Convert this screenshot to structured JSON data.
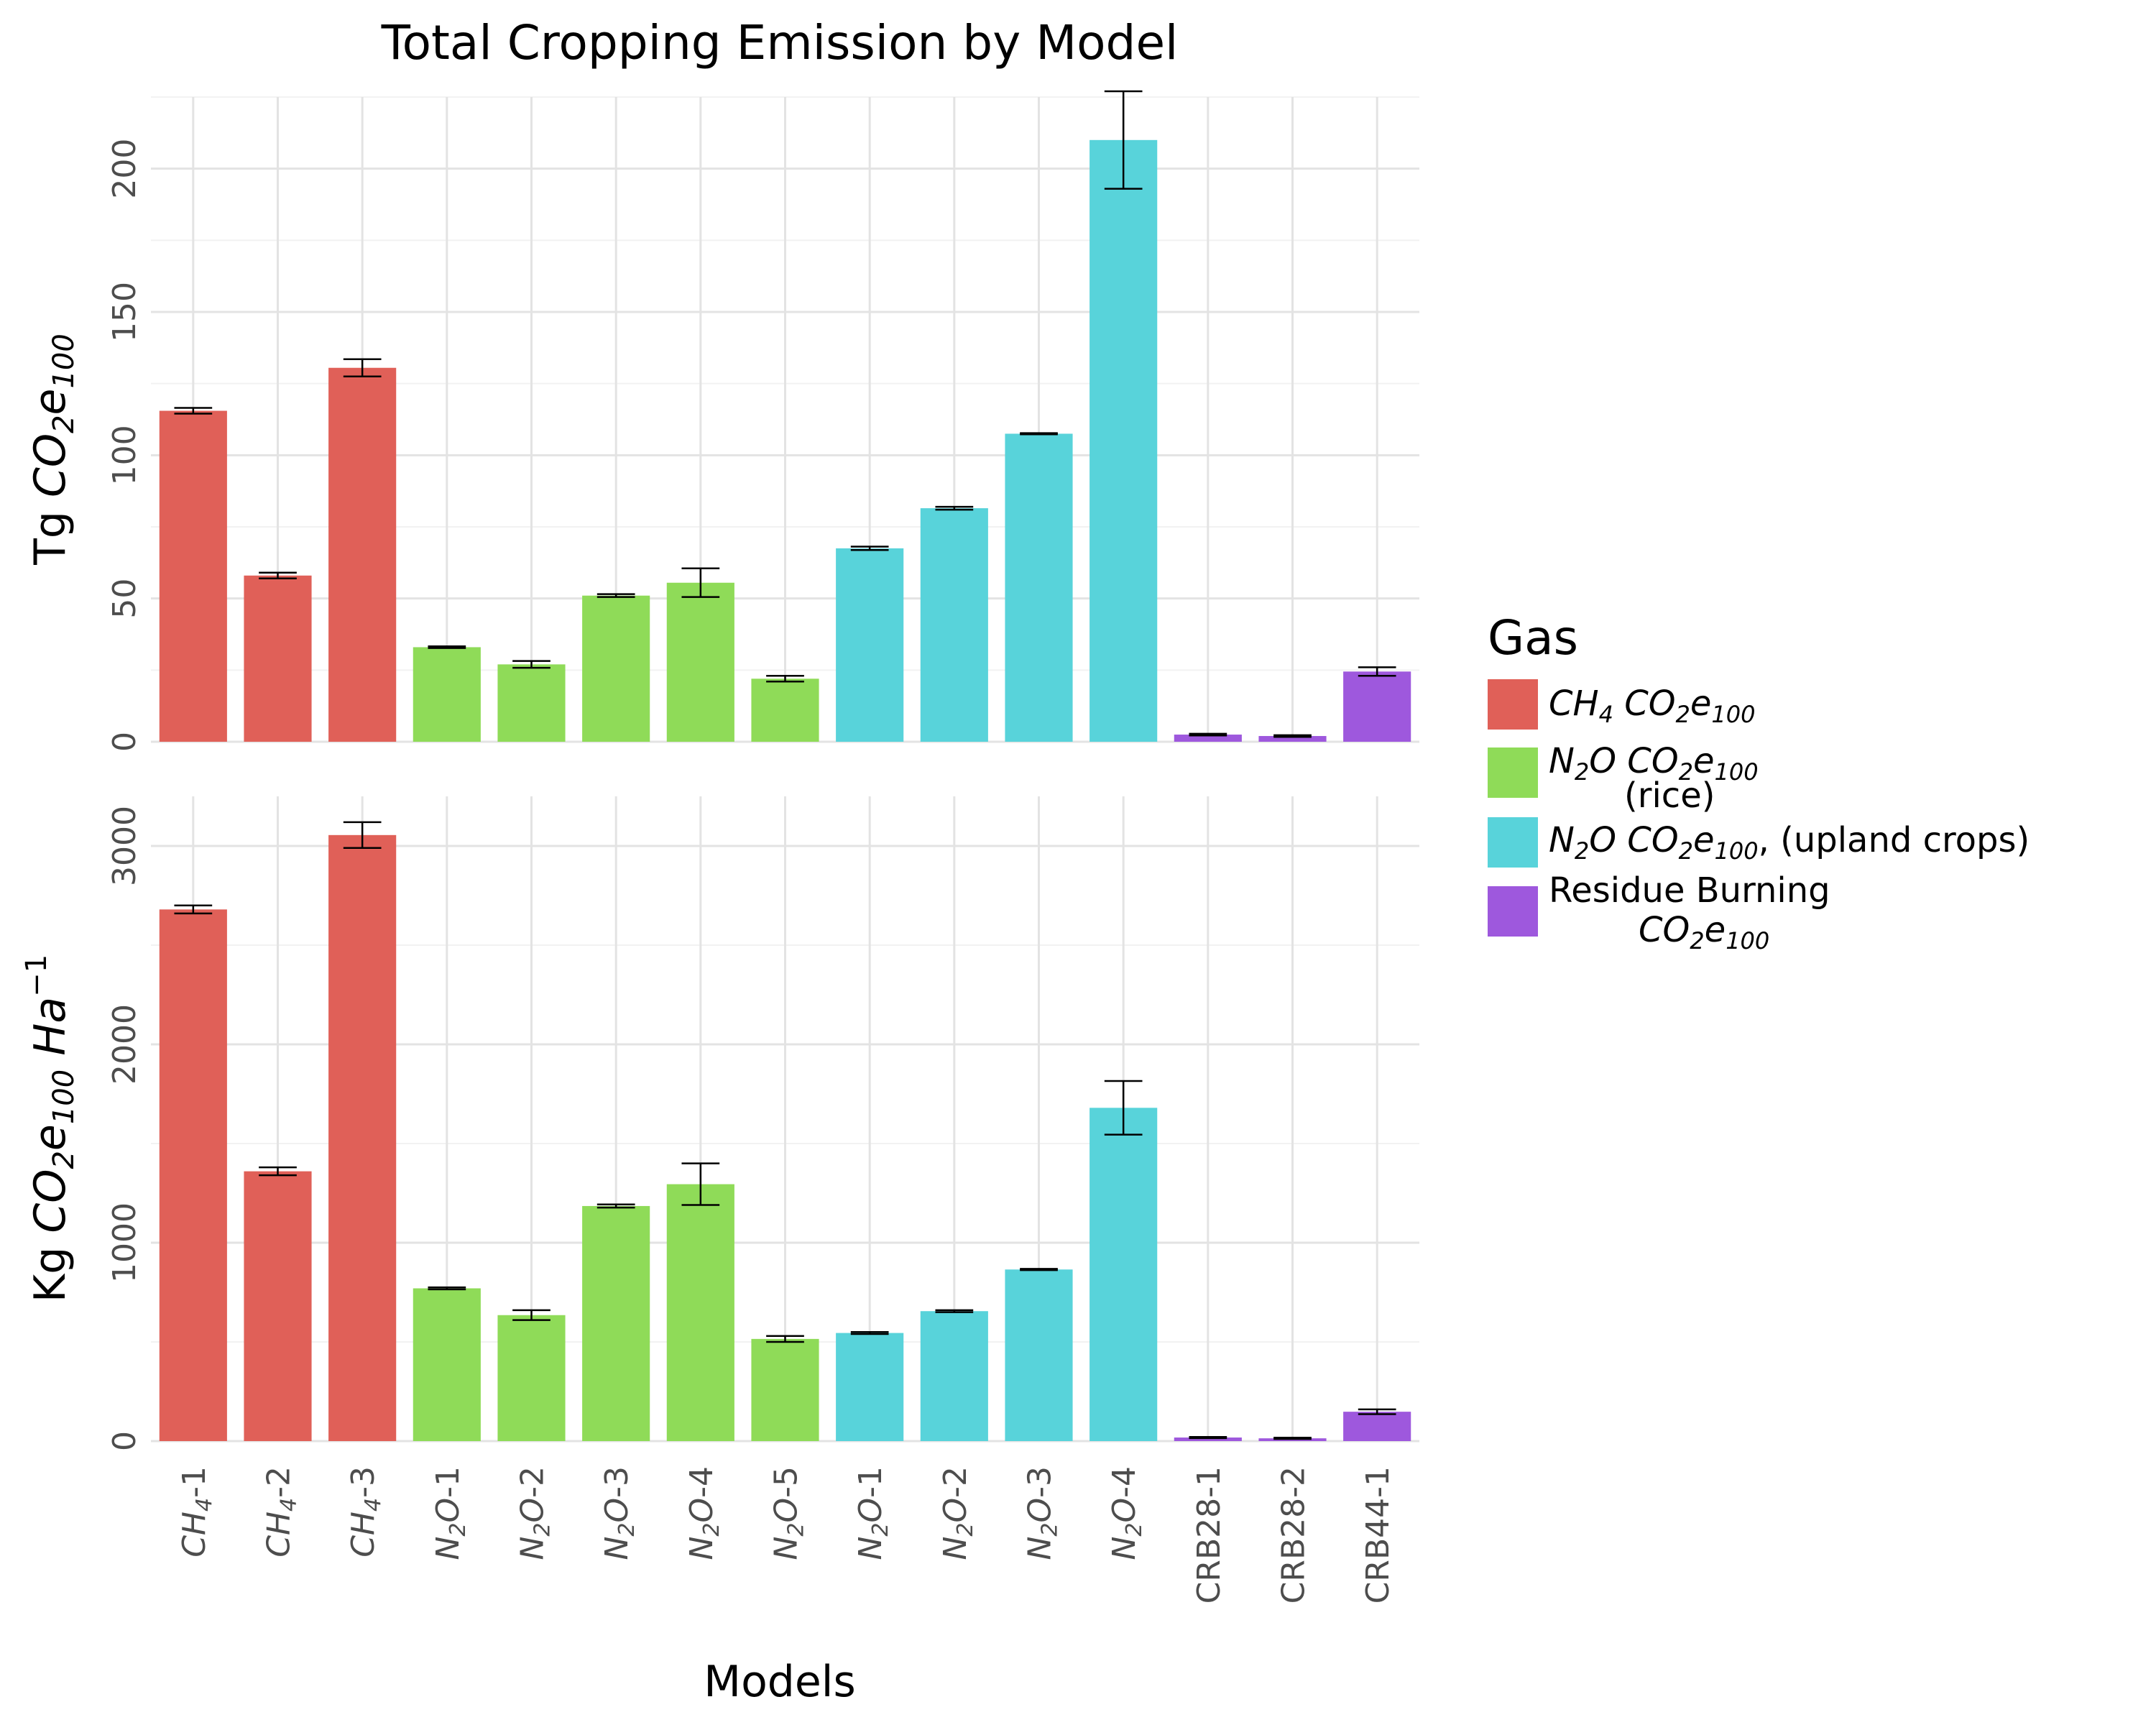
{
  "chart_data": {
    "type": "bar",
    "title": "Total Cropping Emission by Model",
    "xlabel": "Models",
    "categories": [
      "CH4-1",
      "CH4-2",
      "CH4-3",
      "N2O-1",
      "N2O-2",
      "N2O-3",
      "N2O-4",
      "N2O-5",
      "N2O-1",
      "N2O-2",
      "N2O-3",
      "N2O-4",
      "CRB28-1",
      "CRB28-2",
      "CRB44-1"
    ],
    "category_gas": [
      0,
      0,
      0,
      1,
      1,
      1,
      1,
      1,
      2,
      2,
      2,
      2,
      3,
      3,
      3
    ],
    "legend": {
      "title": "Gas",
      "placement": "right",
      "entries": [
        {
          "label": "CH4 CO2e100",
          "color": "#e06058"
        },
        {
          "label": "N2O CO2e100 (rice)",
          "color": "#8fdb58"
        },
        {
          "label": "N2O CO2e100, (upland crops)",
          "color": "#58d3da"
        },
        {
          "label": "Residue Burning CO2e100",
          "color": "#9e58dd"
        }
      ]
    },
    "panels": [
      {
        "ylabel": "Tg CO2e100",
        "ylim": [
          0,
          225
        ],
        "yticks": [
          0,
          50,
          100,
          150,
          200
        ],
        "values": [
          115.5,
          58,
          130.5,
          33,
          27,
          51,
          55.5,
          22,
          67.5,
          81.5,
          107.5,
          210
        ],
        "values_tail": [
          2.5,
          2,
          24.5
        ],
        "errors": [
          1.0,
          1.0,
          3.0,
          0.3,
          1.2,
          0.5,
          5.0,
          1.0,
          0.6,
          0.5,
          0.2,
          17.0,
          0.3,
          0.3,
          1.5
        ]
      },
      {
        "ylabel": "Kg CO2e100 Ha-1",
        "ylim": [
          0,
          3250
        ],
        "yticks": [
          0,
          1000,
          2000,
          3000
        ],
        "values": [
          2680,
          1360,
          3055,
          770,
          635,
          1185,
          1295,
          515,
          545,
          655,
          865,
          1680
        ],
        "values_tail": [
          18,
          14,
          148
        ],
        "errors": [
          20,
          20,
          65,
          5,
          25,
          8,
          105,
          15,
          5,
          5,
          3,
          135,
          3,
          3,
          12
        ]
      }
    ]
  }
}
